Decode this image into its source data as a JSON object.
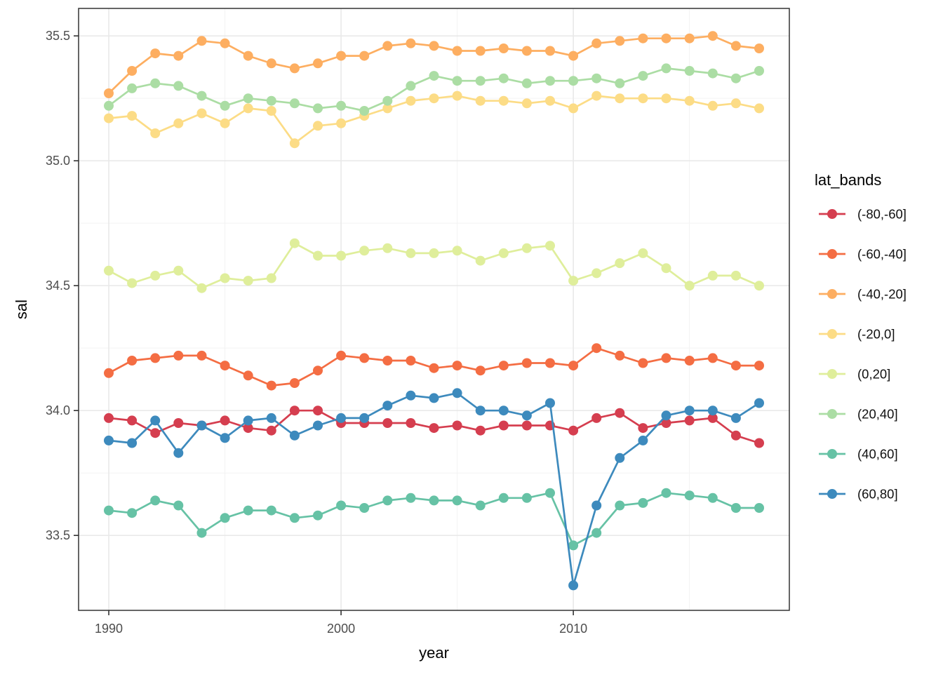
{
  "chart_data": {
    "type": "line",
    "title": "",
    "xlabel": "year",
    "ylabel": "sal",
    "legend_title": "lat_bands",
    "legend_position": "right",
    "grid": true,
    "marker": "point",
    "xlim": [
      1988.7,
      2019.3
    ],
    "ylim": [
      33.2,
      35.61
    ],
    "x_ticks": [
      1990,
      2000,
      2010
    ],
    "x_tick_labels": [
      "1990",
      "2000",
      "2010"
    ],
    "x_minor_breaks": [
      1995,
      2005,
      2015
    ],
    "y_ticks": [
      33.5,
      34.0,
      34.5,
      35.0,
      35.5
    ],
    "y_tick_labels": [
      "33.5",
      "34.0",
      "34.5",
      "35.0",
      "35.5"
    ],
    "y_minor_breaks": [
      33.75,
      34.25,
      34.75,
      35.25
    ],
    "x": [
      1990,
      1991,
      1992,
      1993,
      1994,
      1995,
      1996,
      1997,
      1998,
      1999,
      2000,
      2001,
      2002,
      2003,
      2004,
      2005,
      2006,
      2007,
      2008,
      2009,
      2010,
      2011,
      2012,
      2013,
      2014,
      2015,
      2016,
      2017,
      2018
    ],
    "series": [
      {
        "name": "(-80,-60]",
        "color": "#d53e4f",
        "values": [
          33.97,
          33.96,
          33.91,
          33.95,
          33.94,
          33.96,
          33.93,
          33.92,
          34.0,
          34.0,
          33.95,
          33.95,
          33.95,
          33.95,
          33.93,
          33.94,
          33.92,
          33.94,
          33.94,
          33.94,
          33.92,
          33.97,
          33.99,
          33.93,
          33.95,
          33.96,
          33.97,
          33.9,
          33.87
        ]
      },
      {
        "name": "(-60,-40]",
        "color": "#f46d43",
        "values": [
          34.15,
          34.2,
          34.21,
          34.22,
          34.22,
          34.18,
          34.14,
          34.1,
          34.11,
          34.16,
          34.22,
          34.21,
          34.2,
          34.2,
          34.17,
          34.18,
          34.16,
          34.18,
          34.19,
          34.19,
          34.18,
          34.25,
          34.22,
          34.19,
          34.21,
          34.2,
          34.21,
          34.18,
          34.18
        ]
      },
      {
        "name": "(-40,-20]",
        "color": "#fdae61",
        "values": [
          35.27,
          35.36,
          35.43,
          35.42,
          35.48,
          35.47,
          35.42,
          35.39,
          35.37,
          35.39,
          35.42,
          35.42,
          35.46,
          35.47,
          35.46,
          35.44,
          35.44,
          35.45,
          35.44,
          35.44,
          35.42,
          35.47,
          35.48,
          35.49,
          35.49,
          35.49,
          35.5,
          35.46,
          35.45
        ]
      },
      {
        "name": "(-20,0]",
        "color": "#fcdc86",
        "values": [
          35.17,
          35.18,
          35.11,
          35.15,
          35.19,
          35.15,
          35.21,
          35.2,
          35.07,
          35.14,
          35.15,
          35.18,
          35.21,
          35.24,
          35.25,
          35.26,
          35.24,
          35.24,
          35.23,
          35.24,
          35.21,
          35.26,
          35.25,
          35.25,
          35.25,
          35.24,
          35.22,
          35.23,
          35.21
        ]
      },
      {
        "name": "(0,20]",
        "color": "#dfee9b",
        "values": [
          34.56,
          34.51,
          34.54,
          34.56,
          34.49,
          34.53,
          34.52,
          34.53,
          34.67,
          34.62,
          34.62,
          34.64,
          34.65,
          34.63,
          34.63,
          34.64,
          34.6,
          34.63,
          34.65,
          34.66,
          34.52,
          34.55,
          34.59,
          34.63,
          34.57,
          34.5,
          34.54,
          34.54,
          34.5
        ]
      },
      {
        "name": "(20,40]",
        "color": "#abdda4",
        "values": [
          35.22,
          35.29,
          35.31,
          35.3,
          35.26,
          35.22,
          35.25,
          35.24,
          35.23,
          35.21,
          35.22,
          35.2,
          35.24,
          35.3,
          35.34,
          35.32,
          35.32,
          35.33,
          35.31,
          35.32,
          35.32,
          35.33,
          35.31,
          35.34,
          35.37,
          35.36,
          35.35,
          35.33,
          35.36
        ]
      },
      {
        "name": "(40,60]",
        "color": "#66c2a5",
        "values": [
          33.6,
          33.59,
          33.64,
          33.62,
          33.51,
          33.57,
          33.6,
          33.6,
          33.57,
          33.58,
          33.62,
          33.61,
          33.64,
          33.65,
          33.64,
          33.64,
          33.62,
          33.65,
          33.65,
          33.67,
          33.46,
          33.51,
          33.62,
          33.63,
          33.67,
          33.66,
          33.65,
          33.61,
          33.61
        ]
      },
      {
        "name": "(60,80]",
        "color": "#3d8abd",
        "values": [
          33.88,
          33.87,
          33.96,
          33.83,
          33.94,
          33.89,
          33.96,
          33.97,
          33.9,
          33.94,
          33.97,
          33.97,
          34.02,
          34.06,
          34.05,
          34.07,
          34.0,
          34.0,
          33.98,
          34.03,
          33.3,
          33.62,
          33.81,
          33.88,
          33.98,
          34.0,
          34.0,
          33.97,
          34.03
        ]
      }
    ]
  },
  "style": {
    "panel_border_color": "#333333",
    "grid_major_color": "#e9e9e9",
    "grid_minor_color": "#f3f3f3",
    "tick_color": "#333333",
    "background": "#ffffff"
  }
}
